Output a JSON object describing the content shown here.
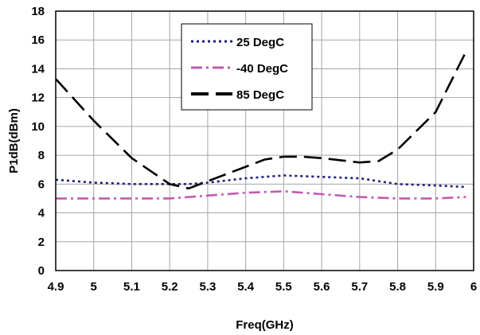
{
  "chart_data": {
    "type": "line",
    "title": "",
    "xlabel": "Freq(GHz)",
    "ylabel": "P1dB(dBm)",
    "xlim": [
      4.9,
      6.0
    ],
    "ylim": [
      0,
      18
    ],
    "x_ticks": [
      "4.9",
      "5",
      "5.1",
      "5.2",
      "5.3",
      "5.4",
      "5.5",
      "5.6",
      "5.7",
      "5.8",
      "5.9",
      "6"
    ],
    "y_ticks": [
      "0",
      "2",
      "4",
      "6",
      "8",
      "10",
      "12",
      "14",
      "16",
      "18"
    ],
    "grid": true,
    "legend_position": "top-center",
    "series": [
      {
        "name": "25 DegC",
        "color": "#1f1f7a",
        "dash": "dotted",
        "x": [
          4.9,
          5.0,
          5.1,
          5.2,
          5.25,
          5.3,
          5.4,
          5.5,
          5.6,
          5.7,
          5.8,
          5.9,
          5.98
        ],
        "y": [
          6.3,
          6.1,
          6.0,
          6.0,
          6.0,
          6.1,
          6.4,
          6.6,
          6.5,
          6.4,
          6.0,
          5.9,
          5.8
        ]
      },
      {
        "name": "-40 DegC",
        "color": "#c25ab0",
        "dash": "dash-dot",
        "x": [
          4.9,
          5.0,
          5.1,
          5.2,
          5.3,
          5.4,
          5.5,
          5.6,
          5.7,
          5.8,
          5.9,
          5.98
        ],
        "y": [
          5.0,
          5.0,
          5.0,
          5.0,
          5.2,
          5.4,
          5.5,
          5.3,
          5.1,
          5.0,
          5.0,
          5.1
        ]
      },
      {
        "name": "85 DegC",
        "color": "#000000",
        "dash": "long-dash",
        "x": [
          4.9,
          5.0,
          5.1,
          5.2,
          5.25,
          5.3,
          5.4,
          5.45,
          5.5,
          5.55,
          5.6,
          5.7,
          5.75,
          5.8,
          5.9,
          5.98
        ],
        "y": [
          13.3,
          10.4,
          7.8,
          6.0,
          5.7,
          6.2,
          7.2,
          7.7,
          7.9,
          7.9,
          7.8,
          7.5,
          7.6,
          8.4,
          11.0,
          15.2
        ]
      }
    ]
  }
}
